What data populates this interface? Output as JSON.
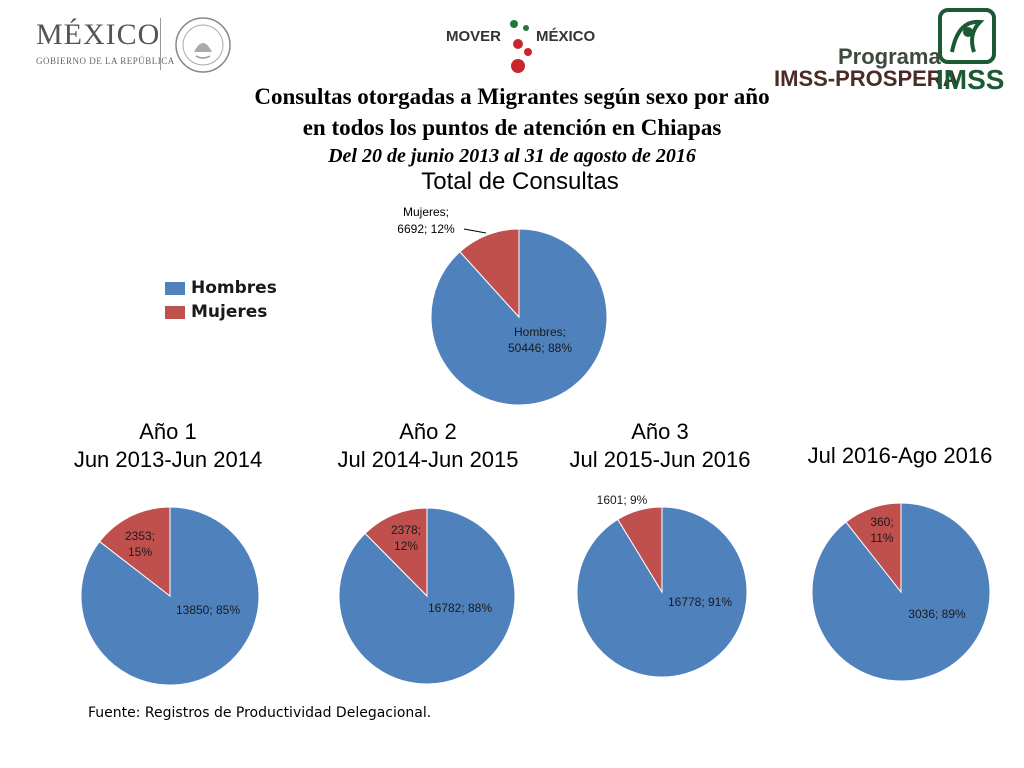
{
  "header": {
    "gov_logo_word": "MÉXICO",
    "gov_logo_subtitle": "GOBIERNO DE LA REPÚBLICA",
    "mover_logo_left": "MOVER",
    "mover_logo_right": "MÉXICO",
    "imss_logo_programa": "Programa",
    "imss_logo_prospera": "IMSS-PROSPERA",
    "imss_logo_word": "IMSS"
  },
  "title_line1": "Consultas otorgadas a Migrantes según sexo por año",
  "title_line2": "en  todos los puntos de atención en Chiapas",
  "subtitle": "Del 20 de junio 2013 al 31 de agosto de 2016",
  "legend": [
    {
      "label": "Hombres",
      "color": "#4f81bd"
    },
    {
      "label": "Mujeres",
      "color": "#c0504d"
    }
  ],
  "colors": {
    "hombres": "#4f81bd",
    "mujeres": "#c0504d"
  },
  "chart_data": [
    {
      "type": "pie",
      "title": "Total de Consultas",
      "categories": [
        "Hombres",
        "Mujeres"
      ],
      "values": [
        50446,
        6692
      ],
      "percents": [
        88,
        12
      ],
      "labels": [
        "Hombres; 50446; 88%",
        "Mujeres; 6692; 12%"
      ],
      "label_lines": [
        [
          "Hombres;",
          "50446; 88%"
        ],
        [
          "Mujeres;",
          "6692; 12%"
        ]
      ]
    },
    {
      "type": "pie",
      "title": "Año 1",
      "subtitle": "Jun 2013-Jun 2014",
      "categories": [
        "Hombres",
        "Mujeres"
      ],
      "values": [
        13850,
        2353
      ],
      "percents": [
        85,
        15
      ],
      "label_lines": [
        [
          "13850; 85%"
        ],
        [
          "2353;",
          "15%"
        ]
      ]
    },
    {
      "type": "pie",
      "title": "Año 2",
      "subtitle": "Jul 2014-Jun 2015",
      "categories": [
        "Hombres",
        "Mujeres"
      ],
      "values": [
        16782,
        2378
      ],
      "percents": [
        88,
        12
      ],
      "label_lines": [
        [
          "16782; 88%"
        ],
        [
          "2378;",
          "12%"
        ]
      ]
    },
    {
      "type": "pie",
      "title": "Año 3",
      "subtitle": "Jul 2015-Jun 2016",
      "categories": [
        "Hombres",
        "Mujeres"
      ],
      "values": [
        16778,
        1601
      ],
      "percents": [
        91,
        9
      ],
      "label_lines": [
        [
          "16778; 91%"
        ],
        [
          "1601; 9%"
        ]
      ]
    },
    {
      "type": "pie",
      "title": "",
      "subtitle": "Jul 2016-Ago 2016",
      "categories": [
        "Hombres",
        "Mujeres"
      ],
      "values": [
        3036,
        360
      ],
      "percents": [
        89,
        11
      ],
      "label_lines": [
        [
          "3036; 89%"
        ],
        [
          "360;",
          "11%"
        ]
      ]
    }
  ],
  "source": "Fuente: Registros de Productividad Delegacional."
}
